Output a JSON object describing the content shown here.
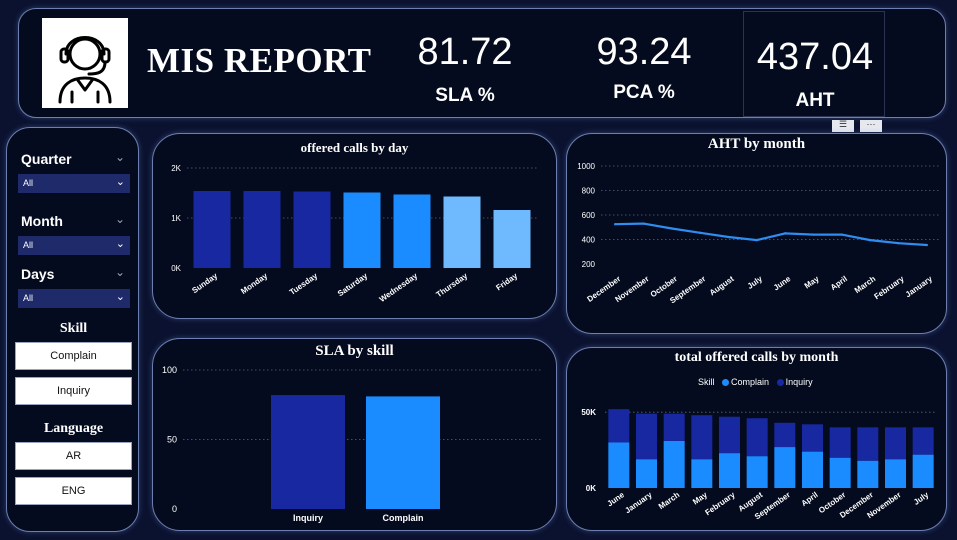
{
  "header": {
    "title": "MIS REPORT",
    "kpis": [
      {
        "value": "81.72",
        "label": "SLA %"
      },
      {
        "value": "93.24",
        "label": "PCA %"
      },
      {
        "value": "437.04",
        "label": "AHT"
      }
    ]
  },
  "slicers": {
    "quarter": {
      "label": "Quarter",
      "value": "All"
    },
    "month": {
      "label": "Month",
      "value": "All"
    },
    "days": {
      "label": "Days",
      "value": "All"
    },
    "skill": {
      "label": "Skill",
      "options": [
        "Complain",
        "Inquiry"
      ]
    },
    "language": {
      "label": "Language",
      "options": [
        "AR",
        "ENG"
      ]
    }
  },
  "colors": {
    "dark_blue": "#1728a0",
    "medium_blue": "#1a8cff",
    "light_blue": "#6fbaff",
    "line_blue": "#2f8cf0"
  },
  "chart_data": [
    {
      "id": "offered_calls_by_day",
      "type": "bar",
      "title": "offered calls by day",
      "categories": [
        "Sunday",
        "Monday",
        "Tuesday",
        "Saturday",
        "Wednesday",
        "Thursday",
        "Friday"
      ],
      "values": [
        1540,
        1540,
        1530,
        1510,
        1470,
        1430,
        1160
      ],
      "color_levels": [
        "dark",
        "dark",
        "dark",
        "medium",
        "medium",
        "light",
        "light"
      ],
      "yticks": [
        "0K",
        "1K",
        "2K"
      ],
      "ylim": [
        0,
        2000
      ],
      "grid": true
    },
    {
      "id": "aht_by_month",
      "type": "line",
      "title": "AHT by month",
      "categories": [
        "December",
        "November",
        "October",
        "September",
        "August",
        "July",
        "June",
        "May",
        "April",
        "March",
        "February",
        "January"
      ],
      "values": [
        525,
        530,
        490,
        455,
        420,
        395,
        450,
        440,
        440,
        395,
        370,
        355
      ],
      "yticks": [
        "200",
        "400",
        "600",
        "800",
        "1000"
      ],
      "ylim": [
        200,
        1000
      ],
      "grid": true
    },
    {
      "id": "sla_by_skill",
      "type": "bar",
      "title": "SLA by skill",
      "categories": [
        "Inquiry",
        "Complain"
      ],
      "values": [
        82,
        81
      ],
      "yticks": [
        "0",
        "50",
        "100"
      ],
      "ylim": [
        0,
        100
      ],
      "grid": true
    },
    {
      "id": "total_offered_calls_by_month",
      "type": "bar",
      "stacked": true,
      "title": "total offered calls by month",
      "legend_title": "Skill",
      "categories": [
        "June",
        "January",
        "March",
        "May",
        "February",
        "August",
        "September",
        "April",
        "October",
        "December",
        "November",
        "July"
      ],
      "series": [
        {
          "name": "Complain",
          "values": [
            30000,
            19000,
            31000,
            19000,
            23000,
            21000,
            27000,
            24000,
            20000,
            18000,
            19000,
            22000
          ]
        },
        {
          "name": "Inquiry",
          "values": [
            22000,
            30000,
            18000,
            29000,
            24000,
            25000,
            16000,
            18000,
            20000,
            22000,
            21000,
            18000
          ]
        }
      ],
      "yticks": [
        "0K",
        "50K"
      ],
      "ylim": [
        0,
        60000
      ],
      "legend": "top-center",
      "grid": true
    }
  ]
}
